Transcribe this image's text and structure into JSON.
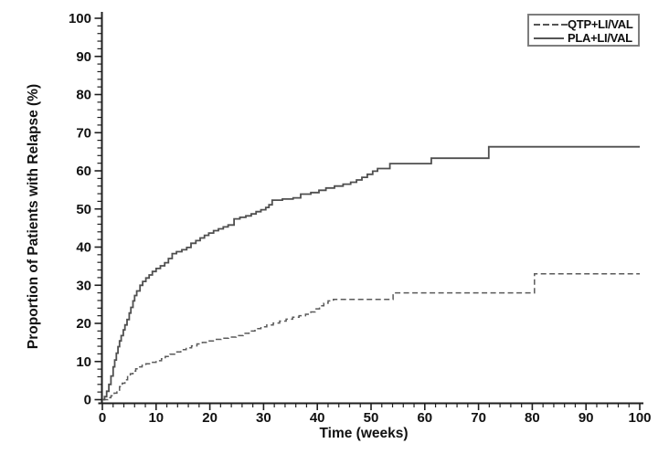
{
  "figure": {
    "background": "#ffffff",
    "axis_color": "#1f1f1f",
    "text_color": "#111111"
  },
  "chart_data": {
    "type": "line",
    "subtype": "step-cumulative-incidence",
    "title": "",
    "xlabel": "Time (weeks)",
    "ylabel": "Proportion of Patients with Relapse (%)",
    "xlim": [
      0,
      100
    ],
    "ylim": [
      0,
      100
    ],
    "x_major_ticks": [
      0,
      10,
      20,
      30,
      40,
      50,
      60,
      70,
      80,
      90,
      100
    ],
    "y_major_ticks": [
      0,
      10,
      20,
      30,
      40,
      50,
      60,
      70,
      80,
      90,
      100
    ],
    "x_minor_tick_step": 2,
    "y_minor_tick_step": 2,
    "grid": false,
    "legend": {
      "position": "top-right",
      "entries": [
        {
          "label": "QTP+LI/VAL",
          "line_style": "dashed"
        },
        {
          "label": "PLA+LI/VAL",
          "line_style": "solid"
        }
      ]
    },
    "series": [
      {
        "name": "QTP+LI/VAL",
        "line_style": "dashed",
        "color": "#5a5a5a",
        "points_week_percent": [
          [
            0,
            0
          ],
          [
            1,
            0.5
          ],
          [
            1.6,
            1
          ],
          [
            2.2,
            1.7
          ],
          [
            2.7,
            2.5
          ],
          [
            3.2,
            3.4
          ],
          [
            3.7,
            4.3
          ],
          [
            4.2,
            5.2
          ],
          [
            4.7,
            6
          ],
          [
            5.2,
            6.8
          ],
          [
            5.7,
            7.5
          ],
          [
            6.2,
            8.1
          ],
          [
            6.8,
            8.6
          ],
          [
            7.4,
            9
          ],
          [
            8.1,
            9.4
          ],
          [
            9,
            9.8
          ],
          [
            10,
            10.2
          ],
          [
            11,
            10.7
          ],
          [
            11.7,
            11.3
          ],
          [
            12.6,
            11.9
          ],
          [
            13.6,
            12.5
          ],
          [
            14.6,
            13.1
          ],
          [
            15.6,
            13.6
          ],
          [
            16.6,
            14.1
          ],
          [
            17.6,
            14.6
          ],
          [
            18.6,
            15
          ],
          [
            19.7,
            15.4
          ],
          [
            20.8,
            15.8
          ],
          [
            22.1,
            16.1
          ],
          [
            23.5,
            16.4
          ],
          [
            24.9,
            16.8
          ],
          [
            26.2,
            17.4
          ],
          [
            27.3,
            18
          ],
          [
            28.4,
            18.6
          ],
          [
            29.5,
            19.1
          ],
          [
            30.6,
            19.6
          ],
          [
            31.8,
            20.1
          ],
          [
            33,
            20.6
          ],
          [
            34.2,
            21.1
          ],
          [
            35.4,
            21.6
          ],
          [
            36.6,
            22
          ],
          [
            37.8,
            22.4
          ],
          [
            38.8,
            23
          ],
          [
            39.6,
            23.8
          ],
          [
            40.4,
            24.6
          ],
          [
            41.2,
            25.3
          ],
          [
            42,
            25.9
          ],
          [
            43,
            26.3
          ],
          [
            54.1,
            28
          ],
          [
            80.4,
            33
          ],
          [
            100,
            33
          ]
        ]
      },
      {
        "name": "PLA+LI/VAL",
        "line_style": "solid",
        "color": "#4f4f4f",
        "points_week_percent": [
          [
            0,
            0
          ],
          [
            0.4,
            0.8
          ],
          [
            0.8,
            2.2
          ],
          [
            1.2,
            4
          ],
          [
            1.6,
            6.2
          ],
          [
            2,
            8.6
          ],
          [
            2.3,
            10.4
          ],
          [
            2.6,
            12.2
          ],
          [
            2.9,
            13.9
          ],
          [
            3.2,
            15.4
          ],
          [
            3.5,
            16.8
          ],
          [
            3.9,
            18.3
          ],
          [
            4.2,
            19.6
          ],
          [
            4.6,
            21
          ],
          [
            5,
            22.7
          ],
          [
            5.3,
            24.2
          ],
          [
            5.7,
            25.9
          ],
          [
            6,
            27.3
          ],
          [
            6.4,
            28.5
          ],
          [
            7,
            30
          ],
          [
            7.5,
            31
          ],
          [
            8.1,
            31.9
          ],
          [
            8.7,
            32.7
          ],
          [
            9.3,
            33.6
          ],
          [
            10,
            34.4
          ],
          [
            10.8,
            35.1
          ],
          [
            11.6,
            35.9
          ],
          [
            12.3,
            37
          ],
          [
            13,
            38.3
          ],
          [
            13.8,
            38.8
          ],
          [
            14.8,
            39.3
          ],
          [
            15.7,
            39.9
          ],
          [
            16.5,
            41
          ],
          [
            17.4,
            41.7
          ],
          [
            18.2,
            42.4
          ],
          [
            19,
            43.1
          ],
          [
            19.8,
            43.7
          ],
          [
            20.7,
            44.3
          ],
          [
            21.6,
            44.8
          ],
          [
            22.5,
            45.3
          ],
          [
            23.4,
            45.8
          ],
          [
            24.5,
            47.4
          ],
          [
            25.6,
            47.8
          ],
          [
            26.7,
            48.2
          ],
          [
            27.7,
            48.7
          ],
          [
            28.6,
            49.3
          ],
          [
            29.5,
            49.8
          ],
          [
            30.4,
            50.4
          ],
          [
            31,
            51.1
          ],
          [
            31.6,
            52.3
          ],
          [
            33.5,
            52.6
          ],
          [
            35.5,
            52.9
          ],
          [
            36.9,
            53.9
          ],
          [
            38.8,
            54.3
          ],
          [
            40.3,
            54.9
          ],
          [
            41.6,
            55.5
          ],
          [
            43.2,
            56
          ],
          [
            44.8,
            56.5
          ],
          [
            46.2,
            57
          ],
          [
            47.3,
            57.6
          ],
          [
            48.3,
            58.3
          ],
          [
            49.3,
            59.1
          ],
          [
            50.3,
            59.9
          ],
          [
            51.2,
            60.6
          ],
          [
            53.5,
            61.9
          ],
          [
            61.2,
            63.3
          ],
          [
            71.9,
            66.3
          ],
          [
            100,
            66.3
          ]
        ]
      }
    ]
  }
}
